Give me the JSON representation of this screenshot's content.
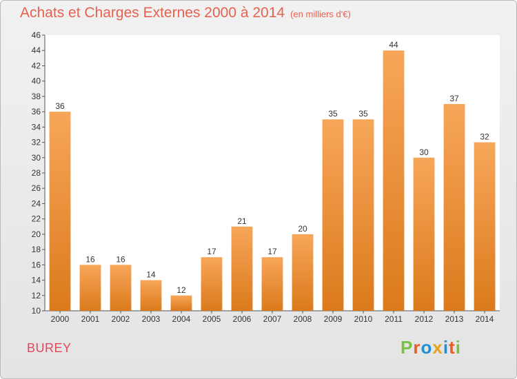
{
  "chart_data": {
    "type": "bar",
    "title": "Achats et Charges Externes 2000 à 2014",
    "subtitle": "(en milliers d'€)",
    "categories": [
      "2000",
      "2001",
      "2002",
      "2003",
      "2004",
      "2005",
      "2006",
      "2007",
      "2008",
      "2009",
      "2010",
      "2011",
      "2012",
      "2013",
      "2014"
    ],
    "values": [
      36,
      16,
      16,
      14,
      12,
      17,
      21,
      17,
      20,
      35,
      35,
      44,
      30,
      37,
      32
    ],
    "ylim": [
      10,
      46
    ],
    "ytick_step": 2,
    "grid": false,
    "bar_color_top": "#f7a659",
    "bar_color_bottom": "#db7a1c"
  },
  "footer": {
    "commune": "BUREY",
    "logo_text": "Proxiti",
    "logo_colors": [
      "#7ac043",
      "#e65c2a",
      "#1e8fd4",
      "#e8a21e",
      "#1e8fd4",
      "#e65c2a",
      "#7ac043"
    ]
  }
}
